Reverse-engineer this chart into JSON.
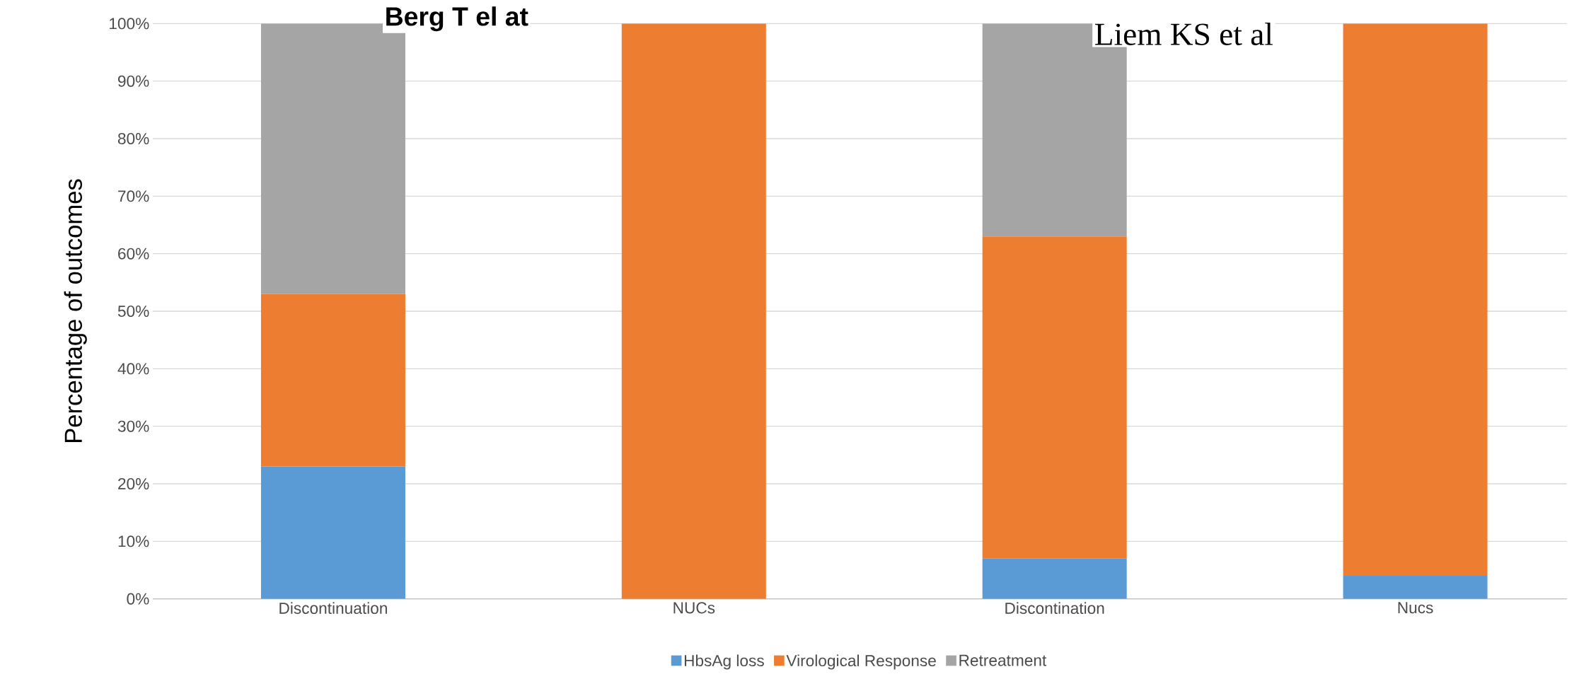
{
  "chart_data": {
    "type": "bar",
    "stacked": true,
    "ylabel": "Percentage of outcomes",
    "categories": [
      "Discontinuation",
      "NUCs",
      "Discontination",
      "Nucs"
    ],
    "series": [
      {
        "name": "HbsAg loss",
        "color": "#5b9bd5",
        "values": [
          23,
          0,
          7,
          4
        ]
      },
      {
        "name": "Virological Response",
        "color": "#ed7d31",
        "values": [
          30,
          100,
          56,
          96
        ]
      },
      {
        "name": "Retreatment",
        "color": "#a5a5a5",
        "values": [
          47,
          0,
          37,
          0
        ]
      }
    ],
    "annotations": [
      "**Berg T el at**",
      "Liem KS et al"
    ],
    "ylim": [
      0,
      100
    ],
    "yticks": [
      {
        "value": 0,
        "label": "0%"
      },
      {
        "value": 10,
        "label": "10%"
      },
      {
        "value": 20,
        "label": "20%"
      },
      {
        "value": 30,
        "label": "30%"
      },
      {
        "value": 40,
        "label": "40%"
      },
      {
        "value": 50,
        "label": "50%"
      },
      {
        "value": 60,
        "label": "60%"
      },
      {
        "value": 70,
        "label": "70%"
      },
      {
        "value": 80,
        "label": "80%"
      },
      {
        "value": 90,
        "label": "90%"
      },
      {
        "value": 100,
        "label": "100%"
      }
    ],
    "grid": "y",
    "legend": "bottom"
  }
}
